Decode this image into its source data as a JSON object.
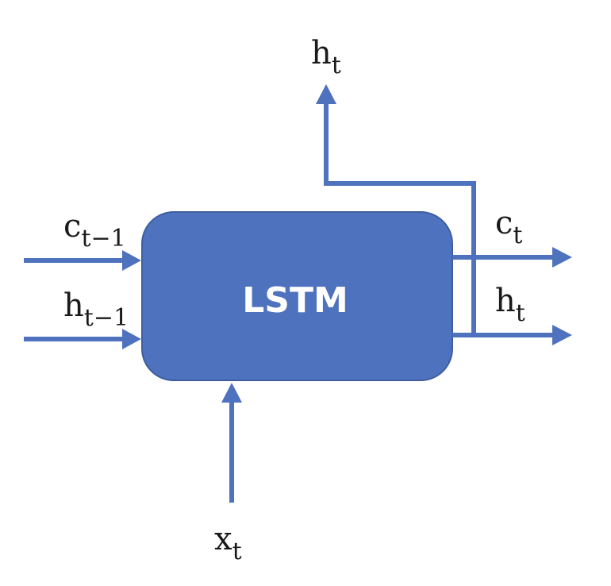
{
  "colors": {
    "accent": "#4f72bf",
    "box_fill": "#4f72bf",
    "box_stroke": "#3e5e9f",
    "text": "#1a1a1a",
    "box_text": "#ffffff"
  },
  "box": {
    "label": "LSTM"
  },
  "inputs": {
    "cell_prev": {
      "base": "c",
      "sub": "t−1"
    },
    "hidden_prev": {
      "base": "h",
      "sub": "t−1"
    },
    "x": {
      "base": "x",
      "sub": "t"
    }
  },
  "outputs": {
    "hidden_top": {
      "base": "h",
      "sub": "t"
    },
    "cell": {
      "base": "c",
      "sub": "t"
    },
    "hidden": {
      "base": "h",
      "sub": "t"
    }
  }
}
